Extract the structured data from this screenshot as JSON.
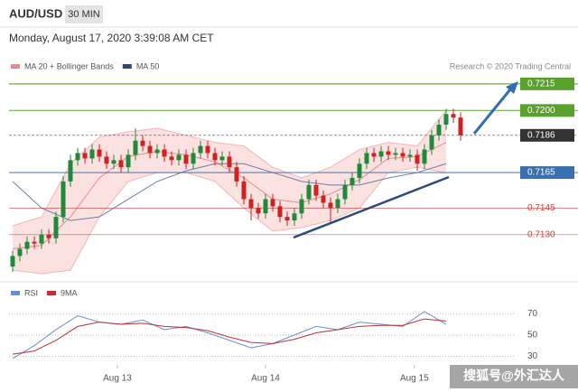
{
  "chart_data": {
    "type": "candlestick",
    "title": "AUD/USD",
    "timeframe": "30 MIN",
    "subtitle": "Monday, August 17, 2020 3:39:08 AM CET",
    "credit": "Research © 2020 Trading Central",
    "watermark": "搜狐号@外汇达人",
    "legend": [
      {
        "name": "MA 20 + Bollinger Bands",
        "color": "#e88a8a"
      },
      {
        "name": "MA 50",
        "color": "#2b4a7a"
      }
    ],
    "up_color": "#1e8a3a",
    "down_color": "#d02020",
    "xlim": [
      -0.5,
      69.5
    ],
    "xticks": [
      {
        "value": 14.5,
        "label": "Aug 13"
      },
      {
        "value": 35,
        "label": "Aug 14"
      },
      {
        "value": 55.6,
        "label": "Aug 15"
      }
    ],
    "ylim": [
      0.7107,
      0.7219
    ],
    "levels": [
      {
        "value": 0.7215,
        "label": "0.7215",
        "color": "#5aa02c",
        "boxed": true
      },
      {
        "value": 0.72,
        "label": "0.7200",
        "color": "#5aa02c",
        "boxed": true
      },
      {
        "value": 0.7186,
        "label": "0.7186",
        "color": "#333333",
        "boxed": true
      },
      {
        "value": 0.7165,
        "label": "0.7165",
        "color": "#3a6fb0",
        "boxed": true
      },
      {
        "value": 0.7145,
        "label": "0.7145",
        "color": "#d04040",
        "boxed": false
      },
      {
        "value": 0.713,
        "label": "0.7130",
        "color": "#d04040",
        "boxed": false
      }
    ],
    "candles": [
      [
        0.7112,
        0.7121,
        0.7109,
        0.7118
      ],
      [
        0.7118,
        0.7125,
        0.7115,
        0.7122
      ],
      [
        0.7122,
        0.7129,
        0.7119,
        0.7126
      ],
      [
        0.7126,
        0.7129,
        0.7122,
        0.7125
      ],
      [
        0.7125,
        0.7133,
        0.7122,
        0.713
      ],
      [
        0.713,
        0.7133,
        0.7125,
        0.7128
      ],
      [
        0.7128,
        0.7143,
        0.7125,
        0.714
      ],
      [
        0.714,
        0.7163,
        0.7137,
        0.716
      ],
      [
        0.716,
        0.7175,
        0.7157,
        0.7172
      ],
      [
        0.7172,
        0.7179,
        0.7169,
        0.7176
      ],
      [
        0.7176,
        0.7179,
        0.717,
        0.7173
      ],
      [
        0.7173,
        0.7181,
        0.717,
        0.7178
      ],
      [
        0.7178,
        0.7181,
        0.7171,
        0.7174
      ],
      [
        0.7174,
        0.7177,
        0.7167,
        0.717
      ],
      [
        0.717,
        0.7175,
        0.7167,
        0.7172
      ],
      [
        0.7172,
        0.7175,
        0.7165,
        0.7168
      ],
      [
        0.7168,
        0.7178,
        0.7165,
        0.7175
      ],
      [
        0.7175,
        0.719,
        0.7172,
        0.7183
      ],
      [
        0.7183,
        0.7186,
        0.7177,
        0.718
      ],
      [
        0.718,
        0.7183,
        0.7173,
        0.7176
      ],
      [
        0.7176,
        0.7181,
        0.7173,
        0.7178
      ],
      [
        0.7178,
        0.7181,
        0.7171,
        0.7174
      ],
      [
        0.7174,
        0.7177,
        0.7169,
        0.7172
      ],
      [
        0.7172,
        0.7178,
        0.7169,
        0.7175
      ],
      [
        0.7175,
        0.7178,
        0.7167,
        0.717
      ],
      [
        0.717,
        0.7179,
        0.7167,
        0.7176
      ],
      [
        0.7176,
        0.7183,
        0.7173,
        0.718
      ],
      [
        0.718,
        0.7183,
        0.7173,
        0.7176
      ],
      [
        0.7176,
        0.7179,
        0.7169,
        0.7172
      ],
      [
        0.7172,
        0.7177,
        0.7169,
        0.7174
      ],
      [
        0.7174,
        0.7177,
        0.7165,
        0.7168
      ],
      [
        0.7168,
        0.7171,
        0.7157,
        0.716
      ],
      [
        0.716,
        0.7163,
        0.7147,
        0.715
      ],
      [
        0.715,
        0.7153,
        0.7138,
        0.7145
      ],
      [
        0.7145,
        0.7148,
        0.7139,
        0.7142
      ],
      [
        0.7142,
        0.7153,
        0.7139,
        0.715
      ],
      [
        0.715,
        0.7153,
        0.7143,
        0.7146
      ],
      [
        0.7146,
        0.7149,
        0.7137,
        0.714
      ],
      [
        0.714,
        0.7143,
        0.7135,
        0.7138
      ],
      [
        0.7138,
        0.7145,
        0.7135,
        0.7142
      ],
      [
        0.7142,
        0.7153,
        0.7139,
        0.715
      ],
      [
        0.715,
        0.7161,
        0.7147,
        0.7158
      ],
      [
        0.7158,
        0.7161,
        0.7149,
        0.7152
      ],
      [
        0.7152,
        0.7155,
        0.7145,
        0.7148
      ],
      [
        0.7148,
        0.7151,
        0.7137,
        0.7145
      ],
      [
        0.7145,
        0.7153,
        0.7142,
        0.715
      ],
      [
        0.715,
        0.7161,
        0.7147,
        0.7158
      ],
      [
        0.7158,
        0.7165,
        0.7155,
        0.7162
      ],
      [
        0.7162,
        0.7173,
        0.7159,
        0.717
      ],
      [
        0.717,
        0.7179,
        0.7167,
        0.7176
      ],
      [
        0.7176,
        0.7179,
        0.7171,
        0.7174
      ],
      [
        0.7174,
        0.718,
        0.7171,
        0.7177
      ],
      [
        0.7177,
        0.718,
        0.7172,
        0.7175
      ],
      [
        0.7175,
        0.7179,
        0.7172,
        0.7176
      ],
      [
        0.7176,
        0.7179,
        0.7171,
        0.7174
      ],
      [
        0.7174,
        0.7178,
        0.7171,
        0.7175
      ],
      [
        0.7175,
        0.7178,
        0.7166,
        0.717
      ],
      [
        0.717,
        0.7181,
        0.7167,
        0.7178
      ],
      [
        0.7178,
        0.7189,
        0.7175,
        0.7186
      ],
      [
        0.7186,
        0.7195,
        0.7183,
        0.7192
      ],
      [
        0.7192,
        0.7201,
        0.7189,
        0.7198
      ],
      [
        0.7198,
        0.7201,
        0.7193,
        0.7196
      ],
      [
        0.7196,
        0.7199,
        0.7183,
        0.7186
      ]
    ],
    "overlay_x": [
      0,
      4,
      8,
      12,
      16,
      20,
      24,
      28,
      32,
      36,
      40,
      44,
      48,
      52,
      56,
      60
    ],
    "bb_upper": [
      0.7135,
      0.714,
      0.717,
      0.7185,
      0.7188,
      0.719,
      0.7186,
      0.7182,
      0.718,
      0.7168,
      0.7162,
      0.7168,
      0.7178,
      0.7182,
      0.718,
      0.72
    ],
    "bb_lower": [
      0.711,
      0.7108,
      0.711,
      0.714,
      0.716,
      0.7165,
      0.7165,
      0.716,
      0.7145,
      0.7132,
      0.7134,
      0.7138,
      0.7145,
      0.7165,
      0.7168,
      0.7165
    ],
    "ma20": [
      0.7122,
      0.7124,
      0.714,
      0.7162,
      0.7174,
      0.7177,
      0.7175,
      0.7171,
      0.7162,
      0.715,
      0.7148,
      0.7153,
      0.7161,
      0.7173,
      0.7174,
      0.7182
    ],
    "ma50": [
      0.716,
      0.7145,
      0.7138,
      0.714,
      0.715,
      0.716,
      0.7166,
      0.717,
      0.717,
      0.7165,
      0.716,
      0.7158,
      0.7158,
      0.7162,
      0.7165,
      0.717
    ],
    "rsi": {
      "series": [
        {
          "name": "RSI",
          "color": "#6a8fd0",
          "values": [
            28,
            40,
            55,
            68,
            62,
            60,
            64,
            55,
            58,
            52,
            45,
            38,
            42,
            50,
            58,
            55,
            62,
            60,
            58,
            72,
            60
          ]
        },
        {
          "name": "9MA",
          "color": "#c03030",
          "values": [
            32,
            35,
            45,
            58,
            62,
            60,
            61,
            58,
            57,
            54,
            48,
            43,
            42,
            46,
            52,
            55,
            58,
            59,
            59,
            65,
            63
          ]
        }
      ],
      "x": [
        0,
        3,
        6,
        9,
        12,
        15,
        18,
        21,
        24,
        27,
        30,
        33,
        36,
        39,
        42,
        45,
        48,
        51,
        54,
        57,
        60
      ],
      "ylim": [
        22,
        82
      ],
      "yticks": [
        70,
        50,
        30
      ]
    }
  }
}
